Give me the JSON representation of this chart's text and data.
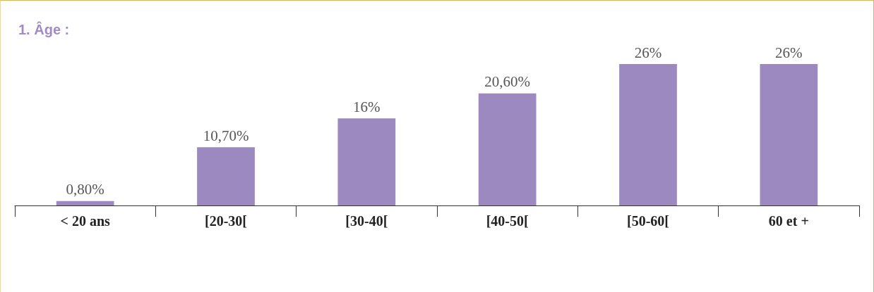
{
  "chart_data": {
    "type": "bar",
    "title": "1. Âge :",
    "categories": [
      "< 20 ans",
      "[20-30[",
      "[30-40[",
      "[40-50[",
      "[50-60[",
      "60 et +"
    ],
    "values": [
      0.8,
      10.7,
      16,
      20.6,
      26,
      26
    ],
    "value_labels": [
      "0,80%",
      "10,70%",
      "16%",
      "20,60%",
      "26%",
      "26%"
    ],
    "color": "#9b89bf"
  }
}
